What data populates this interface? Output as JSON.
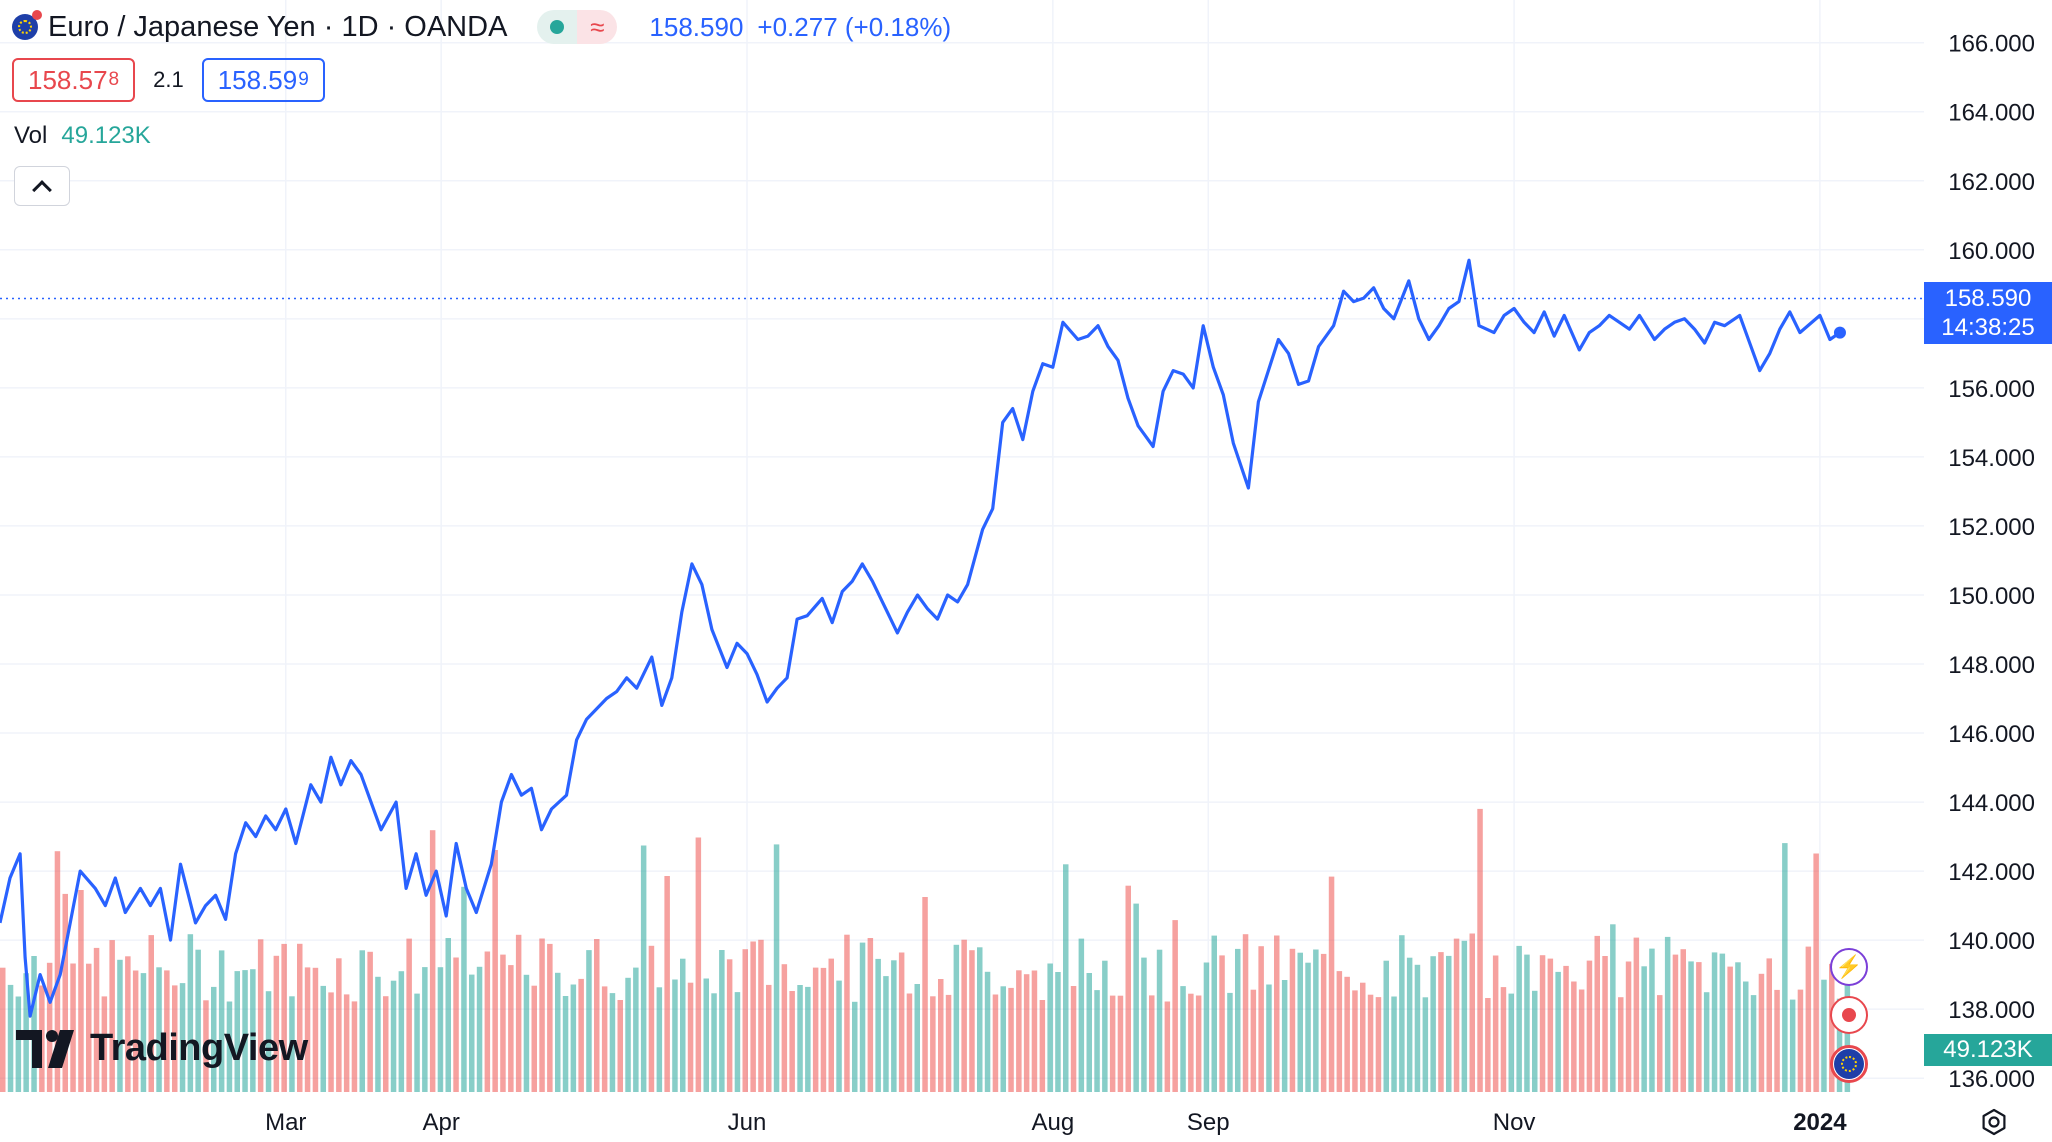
{
  "header": {
    "symbol_icon": "eu-flag-icon",
    "title": "Euro / Japanese Yen · 1D · OANDA",
    "status_icons": [
      "market-open-dot-icon",
      "delayed-data-icon"
    ],
    "delayed_glyph": "≈",
    "last_price": "158.590",
    "change": "+0.277 (+0.18%)"
  },
  "quotes": {
    "bid_main": "158.57",
    "bid_sup": "8",
    "spread": "2.1",
    "ask_main": "158.59",
    "ask_sup": "9"
  },
  "volume": {
    "label": "Vol",
    "value": "49.123K"
  },
  "price_tag": {
    "price": "158.590",
    "countdown": "14:38:25"
  },
  "volume_tag": "49.123K",
  "branding": {
    "logo_text": "TradingView"
  },
  "colors": {
    "line": "#2962ff",
    "vol_up": "#26a69a",
    "vol_down": "#ef5350",
    "grid": "#f0f3fa",
    "axis_text": "#131722",
    "accent": "#2962ff"
  },
  "chart_data": {
    "type": "line",
    "ylim": [
      135.6,
      166.6
    ],
    "y_ticks": [
      "166.000",
      "164.000",
      "162.000",
      "160.000",
      "158.000",
      "156.000",
      "154.000",
      "152.000",
      "150.000",
      "148.000",
      "146.000",
      "144.000",
      "142.000",
      "140.000",
      "138.000",
      "136.000"
    ],
    "y_tick_values": [
      166,
      164,
      162,
      160,
      158,
      156,
      154,
      152,
      150,
      148,
      146,
      144,
      142,
      140,
      138,
      136
    ],
    "x_ticks": [
      "Mar",
      "Apr",
      "Jun",
      "Aug",
      "Sep",
      "Nov",
      "2024"
    ],
    "x_tick_dates": [
      "2023-03-01",
      "2023-04-01",
      "2023-06-01",
      "2023-08-01",
      "2023-09-01",
      "2023-11-01",
      "2024-01-01"
    ],
    "x_range": [
      "2023-01-03",
      "2024-01-08"
    ],
    "current_price": 158.59,
    "series": [
      {
        "values": [
          [
            "2023-01-03",
            140.5
          ],
          [
            "2023-01-05",
            141.8
          ],
          [
            "2023-01-07",
            142.5
          ],
          [
            "2023-01-08",
            139.5
          ],
          [
            "2023-01-09",
            137.8
          ],
          [
            "2023-01-11",
            139.0
          ],
          [
            "2023-01-13",
            138.2
          ],
          [
            "2023-01-15",
            139.0
          ],
          [
            "2023-01-17",
            140.5
          ],
          [
            "2023-01-19",
            142.0
          ],
          [
            "2023-01-22",
            141.5
          ],
          [
            "2023-01-24",
            141.0
          ],
          [
            "2023-01-26",
            141.8
          ],
          [
            "2023-01-28",
            140.8
          ],
          [
            "2023-01-31",
            141.5
          ],
          [
            "2023-02-02",
            141.0
          ],
          [
            "2023-02-04",
            141.5
          ],
          [
            "2023-02-06",
            140.0
          ],
          [
            "2023-02-08",
            142.2
          ],
          [
            "2023-02-11",
            140.5
          ],
          [
            "2023-02-13",
            141.0
          ],
          [
            "2023-02-15",
            141.3
          ],
          [
            "2023-02-17",
            140.6
          ],
          [
            "2023-02-19",
            142.5
          ],
          [
            "2023-02-21",
            143.4
          ],
          [
            "2023-02-23",
            143.0
          ],
          [
            "2023-02-25",
            143.6
          ],
          [
            "2023-02-27",
            143.2
          ],
          [
            "2023-03-01",
            143.8
          ],
          [
            "2023-03-03",
            142.8
          ],
          [
            "2023-03-06",
            144.5
          ],
          [
            "2023-03-08",
            144.0
          ],
          [
            "2023-03-10",
            145.3
          ],
          [
            "2023-03-12",
            144.5
          ],
          [
            "2023-03-14",
            145.2
          ],
          [
            "2023-03-16",
            144.8
          ],
          [
            "2023-03-18",
            144.0
          ],
          [
            "2023-03-20",
            143.2
          ],
          [
            "2023-03-23",
            144.0
          ],
          [
            "2023-03-25",
            141.5
          ],
          [
            "2023-03-27",
            142.5
          ],
          [
            "2023-03-29",
            141.3
          ],
          [
            "2023-03-31",
            142.0
          ],
          [
            "2023-04-02",
            140.7
          ],
          [
            "2023-04-04",
            142.8
          ],
          [
            "2023-04-06",
            141.5
          ],
          [
            "2023-04-08",
            140.8
          ],
          [
            "2023-04-11",
            142.2
          ],
          [
            "2023-04-13",
            144.0
          ],
          [
            "2023-04-15",
            144.8
          ],
          [
            "2023-04-17",
            144.2
          ],
          [
            "2023-04-19",
            144.4
          ],
          [
            "2023-04-21",
            143.2
          ],
          [
            "2023-04-23",
            143.8
          ],
          [
            "2023-04-26",
            144.2
          ],
          [
            "2023-04-28",
            145.8
          ],
          [
            "2023-04-30",
            146.4
          ],
          [
            "2023-05-02",
            146.7
          ],
          [
            "2023-05-04",
            147.0
          ],
          [
            "2023-05-06",
            147.2
          ],
          [
            "2023-05-08",
            147.6
          ],
          [
            "2023-05-10",
            147.3
          ],
          [
            "2023-05-13",
            148.2
          ],
          [
            "2023-05-15",
            146.8
          ],
          [
            "2023-05-17",
            147.6
          ],
          [
            "2023-05-19",
            149.5
          ],
          [
            "2023-05-21",
            150.9
          ],
          [
            "2023-05-23",
            150.3
          ],
          [
            "2023-05-25",
            149.0
          ],
          [
            "2023-05-28",
            147.9
          ],
          [
            "2023-05-30",
            148.6
          ],
          [
            "2023-06-01",
            148.3
          ],
          [
            "2023-06-03",
            147.7
          ],
          [
            "2023-06-05",
            146.9
          ],
          [
            "2023-06-07",
            147.3
          ],
          [
            "2023-06-09",
            147.6
          ],
          [
            "2023-06-11",
            149.3
          ],
          [
            "2023-06-13",
            149.4
          ],
          [
            "2023-06-16",
            149.9
          ],
          [
            "2023-06-18",
            149.2
          ],
          [
            "2023-06-20",
            150.1
          ],
          [
            "2023-06-22",
            150.4
          ],
          [
            "2023-06-24",
            150.9
          ],
          [
            "2023-06-26",
            150.4
          ],
          [
            "2023-06-28",
            149.8
          ],
          [
            "2023-07-01",
            148.9
          ],
          [
            "2023-07-03",
            149.5
          ],
          [
            "2023-07-05",
            150.0
          ],
          [
            "2023-07-07",
            149.6
          ],
          [
            "2023-07-09",
            149.3
          ],
          [
            "2023-07-11",
            150.0
          ],
          [
            "2023-07-13",
            149.8
          ],
          [
            "2023-07-15",
            150.3
          ],
          [
            "2023-07-18",
            151.9
          ],
          [
            "2023-07-20",
            152.5
          ],
          [
            "2023-07-22",
            155.0
          ],
          [
            "2023-07-24",
            155.4
          ],
          [
            "2023-07-26",
            154.5
          ],
          [
            "2023-07-28",
            155.9
          ],
          [
            "2023-07-30",
            156.7
          ],
          [
            "2023-08-01",
            156.6
          ],
          [
            "2023-08-03",
            157.9
          ],
          [
            "2023-08-06",
            157.4
          ],
          [
            "2023-08-08",
            157.5
          ],
          [
            "2023-08-10",
            157.8
          ],
          [
            "2023-08-12",
            157.2
          ],
          [
            "2023-08-14",
            156.8
          ],
          [
            "2023-08-16",
            155.7
          ],
          [
            "2023-08-18",
            154.9
          ],
          [
            "2023-08-21",
            154.3
          ],
          [
            "2023-08-23",
            155.9
          ],
          [
            "2023-08-25",
            156.5
          ],
          [
            "2023-08-27",
            156.4
          ],
          [
            "2023-08-29",
            156.0
          ],
          [
            "2023-08-31",
            157.8
          ],
          [
            "2023-09-02",
            156.6
          ],
          [
            "2023-09-04",
            155.8
          ],
          [
            "2023-09-06",
            154.4
          ],
          [
            "2023-09-09",
            153.1
          ],
          [
            "2023-09-11",
            155.6
          ],
          [
            "2023-09-13",
            156.5
          ],
          [
            "2023-09-15",
            157.4
          ],
          [
            "2023-09-17",
            157.0
          ],
          [
            "2023-09-19",
            156.1
          ],
          [
            "2023-09-21",
            156.2
          ],
          [
            "2023-09-23",
            157.2
          ],
          [
            "2023-09-26",
            157.8
          ],
          [
            "2023-09-28",
            158.8
          ],
          [
            "2023-09-30",
            158.5
          ],
          [
            "2023-10-02",
            158.6
          ],
          [
            "2023-10-04",
            158.9
          ],
          [
            "2023-10-06",
            158.3
          ],
          [
            "2023-10-08",
            158.0
          ],
          [
            "2023-10-11",
            159.1
          ],
          [
            "2023-10-13",
            158.0
          ],
          [
            "2023-10-15",
            157.4
          ],
          [
            "2023-10-17",
            157.8
          ],
          [
            "2023-10-19",
            158.3
          ],
          [
            "2023-10-21",
            158.5
          ],
          [
            "2023-10-23",
            159.7
          ],
          [
            "2023-10-25",
            157.8
          ],
          [
            "2023-10-28",
            157.6
          ],
          [
            "2023-10-30",
            158.1
          ],
          [
            "2023-11-01",
            158.3
          ],
          [
            "2023-11-03",
            157.9
          ],
          [
            "2023-11-05",
            157.6
          ],
          [
            "2023-11-07",
            158.2
          ],
          [
            "2023-11-09",
            157.5
          ],
          [
            "2023-11-11",
            158.1
          ],
          [
            "2023-11-14",
            157.1
          ],
          [
            "2023-11-16",
            157.6
          ],
          [
            "2023-11-18",
            157.8
          ],
          [
            "2023-11-20",
            158.1
          ],
          [
            "2023-11-22",
            157.9
          ],
          [
            "2023-11-24",
            157.7
          ],
          [
            "2023-11-26",
            158.1
          ],
          [
            "2023-11-29",
            157.4
          ],
          [
            "2023-12-01",
            157.7
          ],
          [
            "2023-12-03",
            157.9
          ],
          [
            "2023-12-05",
            158.0
          ],
          [
            "2023-12-07",
            157.7
          ],
          [
            "2023-12-09",
            157.3
          ],
          [
            "2023-12-11",
            157.9
          ],
          [
            "2023-12-13",
            157.8
          ],
          [
            "2023-12-16",
            158.1
          ],
          [
            "2023-12-18",
            157.3
          ],
          [
            "2023-12-20",
            156.5
          ],
          [
            "2023-12-22",
            157.0
          ],
          [
            "2023-12-24",
            157.7
          ],
          [
            "2023-12-26",
            158.2
          ],
          [
            "2023-12-28",
            157.6
          ],
          [
            "2024-01-01",
            158.1
          ],
          [
            "2024-01-03",
            157.4
          ],
          [
            "2024-01-05",
            157.6
          ]
        ]
      }
    ]
  }
}
